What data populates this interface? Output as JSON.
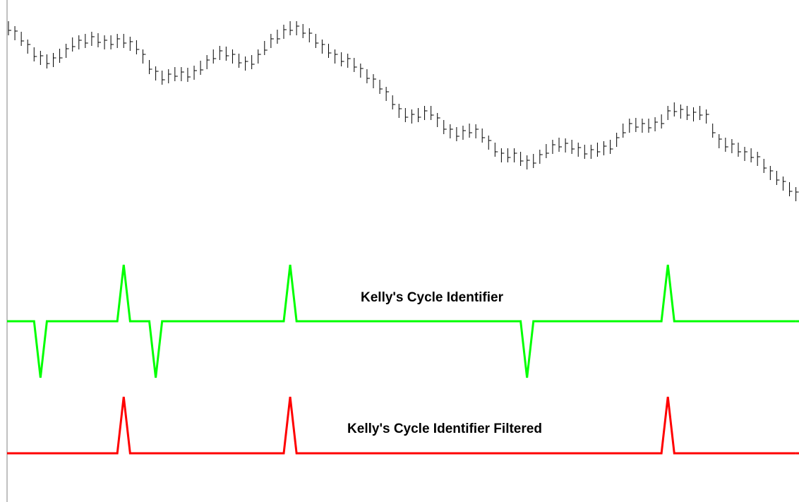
{
  "chart_data": [
    {
      "type": "ohlc",
      "color": "#000000",
      "ylim": [
        10,
        280
      ],
      "high": [
        270,
        263,
        255,
        244,
        233,
        228,
        223,
        225,
        231,
        238,
        247,
        250,
        252,
        255,
        253,
        250,
        250,
        252,
        252,
        248,
        243,
        230,
        215,
        206,
        200,
        202,
        205,
        205,
        204,
        207,
        214,
        222,
        230,
        235,
        234,
        230,
        224,
        220,
        222,
        230,
        242,
        252,
        258,
        265,
        270,
        270,
        266,
        260,
        252,
        244,
        238,
        230,
        226,
        224,
        218,
        210,
        202,
        195,
        187,
        177,
        165,
        153,
        147,
        145,
        147,
        150,
        150,
        140,
        130,
        124,
        120,
        122,
        125,
        124,
        118,
        108,
        98,
        90,
        90,
        90,
        85,
        80,
        82,
        88,
        96,
        102,
        105,
        104,
        102,
        98,
        95,
        95,
        98,
        100,
        102,
        112,
        125,
        132,
        133,
        132,
        132,
        134,
        138,
        150,
        155,
        152,
        150,
        148,
        150,
        145,
        125,
        110,
        105,
        103,
        98,
        92,
        90,
        85,
        75,
        65,
        58,
        50,
        42,
        35
      ],
      "low": [
        250,
        243,
        235,
        224,
        213,
        208,
        203,
        205,
        211,
        218,
        227,
        230,
        232,
        235,
        233,
        230,
        230,
        232,
        232,
        228,
        223,
        210,
        195,
        186,
        180,
        182,
        185,
        185,
        184,
        187,
        194,
        202,
        210,
        215,
        214,
        210,
        204,
        200,
        202,
        210,
        222,
        232,
        238,
        245,
        250,
        250,
        246,
        240,
        232,
        224,
        218,
        210,
        206,
        204,
        198,
        190,
        182,
        175,
        167,
        157,
        145,
        133,
        127,
        125,
        127,
        130,
        130,
        120,
        110,
        104,
        100,
        102,
        105,
        104,
        98,
        88,
        78,
        70,
        70,
        70,
        65,
        60,
        62,
        68,
        76,
        82,
        85,
        84,
        82,
        78,
        75,
        75,
        78,
        80,
        82,
        92,
        105,
        112,
        113,
        112,
        112,
        114,
        118,
        130,
        135,
        132,
        130,
        128,
        130,
        125,
        105,
        90,
        85,
        83,
        78,
        72,
        70,
        65,
        55,
        45,
        38,
        30,
        22,
        15
      ],
      "close": [
        257,
        256,
        242,
        237,
        220,
        221,
        210,
        218,
        218,
        231,
        234,
        243,
        239,
        248,
        240,
        243,
        237,
        245,
        239,
        241,
        230,
        223,
        202,
        199,
        187,
        195,
        192,
        198,
        191,
        200,
        201,
        215,
        217,
        228,
        221,
        223,
        211,
        213,
        209,
        223,
        229,
        245,
        245,
        258,
        257,
        263,
        253,
        253,
        239,
        237,
        225,
        223,
        213,
        217,
        205,
        203,
        189,
        188,
        174,
        170,
        152,
        146,
        134,
        138,
        134,
        143,
        137,
        133,
        117,
        117,
        107,
        115,
        112,
        117,
        105,
        101,
        85,
        83,
        77,
        83,
        72,
        73,
        69,
        81,
        83,
        95,
        92,
        97,
        89,
        91,
        82,
        88,
        85,
        93,
        89,
        105,
        112,
        125,
        120,
        125,
        119,
        127,
        125,
        143,
        142,
        145,
        137,
        141,
        137,
        138,
        112,
        103,
        92,
        96,
        85,
        85,
        77,
        78,
        62,
        58,
        45,
        43,
        29,
        28
      ]
    },
    {
      "type": "line",
      "title": "Kelly's Cycle Identifier",
      "color": "#00ff00",
      "ylim": [
        -1,
        1
      ],
      "values": [
        0,
        0,
        0,
        0,
        0,
        -1,
        0,
        0,
        0,
        0,
        0,
        0,
        0,
        0,
        0,
        0,
        0,
        0,
        1,
        0,
        0,
        0,
        0,
        -1,
        0,
        0,
        0,
        0,
        0,
        0,
        0,
        0,
        0,
        0,
        0,
        0,
        0,
        0,
        0,
        0,
        0,
        0,
        0,
        0,
        1,
        0,
        0,
        0,
        0,
        0,
        0,
        0,
        0,
        0,
        0,
        0,
        0,
        0,
        0,
        0,
        0,
        0,
        0,
        0,
        0,
        0,
        0,
        0,
        0,
        0,
        0,
        0,
        0,
        0,
        0,
        0,
        0,
        0,
        0,
        0,
        0,
        -1,
        0,
        0,
        0,
        0,
        0,
        0,
        0,
        0,
        0,
        0,
        0,
        0,
        0,
        0,
        0,
        0,
        0,
        0,
        0,
        0,
        0,
        1,
        0,
        0,
        0,
        0,
        0,
        0,
        0,
        0,
        0,
        0,
        0,
        0,
        0,
        0,
        0,
        0,
        0,
        0,
        0,
        0
      ]
    },
    {
      "type": "line",
      "title": "Kelly's Cycle Identifier Filtered",
      "color": "#ff0000",
      "ylim": [
        0,
        1
      ],
      "values": [
        0,
        0,
        0,
        0,
        0,
        0,
        0,
        0,
        0,
        0,
        0,
        0,
        0,
        0,
        0,
        0,
        0,
        0,
        1,
        0,
        0,
        0,
        0,
        0,
        0,
        0,
        0,
        0,
        0,
        0,
        0,
        0,
        0,
        0,
        0,
        0,
        0,
        0,
        0,
        0,
        0,
        0,
        0,
        0,
        1,
        0,
        0,
        0,
        0,
        0,
        0,
        0,
        0,
        0,
        0,
        0,
        0,
        0,
        0,
        0,
        0,
        0,
        0,
        0,
        0,
        0,
        0,
        0,
        0,
        0,
        0,
        0,
        0,
        0,
        0,
        0,
        0,
        0,
        0,
        0,
        0,
        0,
        0,
        0,
        0,
        0,
        0,
        0,
        0,
        0,
        0,
        0,
        0,
        0,
        0,
        0,
        0,
        0,
        0,
        0,
        0,
        0,
        0,
        1,
        0,
        0,
        0,
        0,
        0,
        0,
        0,
        0,
        0,
        0,
        0,
        0,
        0,
        0,
        0,
        0,
        0,
        0,
        0,
        0
      ]
    }
  ]
}
